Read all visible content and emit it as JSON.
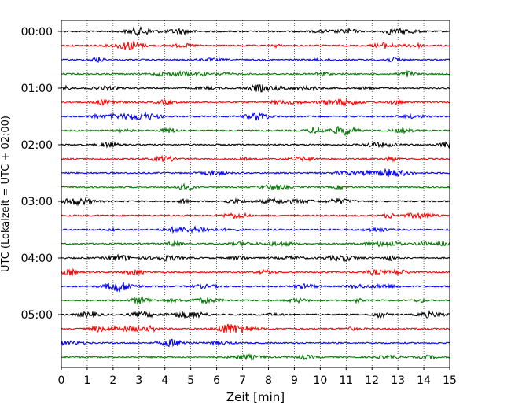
{
  "chart_data": {
    "type": "line",
    "title": "",
    "xlabel": "Zeit  [min]",
    "ylabel": "UTC (Lokalzeit = UTC + 02:00)",
    "xlim": [
      0,
      15
    ],
    "x_ticks": [
      "0",
      "1",
      "2",
      "3",
      "4",
      "5",
      "6",
      "7",
      "8",
      "9",
      "10",
      "11",
      "12",
      "13",
      "14",
      "15"
    ],
    "y_tick_labels": [
      "00:00",
      "01:00",
      "02:00",
      "03:00",
      "04:00",
      "05:00"
    ],
    "grid": "vertical dotted lines at each minute",
    "trace_colors": [
      "#000000",
      "#ff0000",
      "#0000ff",
      "#007a00"
    ],
    "traces": [
      {
        "start": "00:00",
        "color": "#000000"
      },
      {
        "start": "00:15",
        "color": "#ff0000"
      },
      {
        "start": "00:30",
        "color": "#0000ff"
      },
      {
        "start": "00:45",
        "color": "#007a00"
      },
      {
        "start": "01:00",
        "color": "#000000"
      },
      {
        "start": "01:15",
        "color": "#ff0000"
      },
      {
        "start": "01:30",
        "color": "#0000ff"
      },
      {
        "start": "01:45",
        "color": "#007a00"
      },
      {
        "start": "02:00",
        "color": "#000000"
      },
      {
        "start": "02:15",
        "color": "#ff0000"
      },
      {
        "start": "02:30",
        "color": "#0000ff"
      },
      {
        "start": "02:45",
        "color": "#007a00"
      },
      {
        "start": "03:00",
        "color": "#000000"
      },
      {
        "start": "03:15",
        "color": "#ff0000"
      },
      {
        "start": "03:30",
        "color": "#0000ff"
      },
      {
        "start": "03:45",
        "color": "#007a00"
      },
      {
        "start": "04:00",
        "color": "#000000"
      },
      {
        "start": "04:15",
        "color": "#ff0000"
      },
      {
        "start": "04:30",
        "color": "#0000ff"
      },
      {
        "start": "04:45",
        "color": "#007a00"
      },
      {
        "start": "05:00",
        "color": "#000000"
      },
      {
        "start": "05:15",
        "color": "#ff0000"
      },
      {
        "start": "05:30",
        "color": "#0000ff"
      },
      {
        "start": "05:45",
        "color": "#007a00"
      }
    ]
  }
}
